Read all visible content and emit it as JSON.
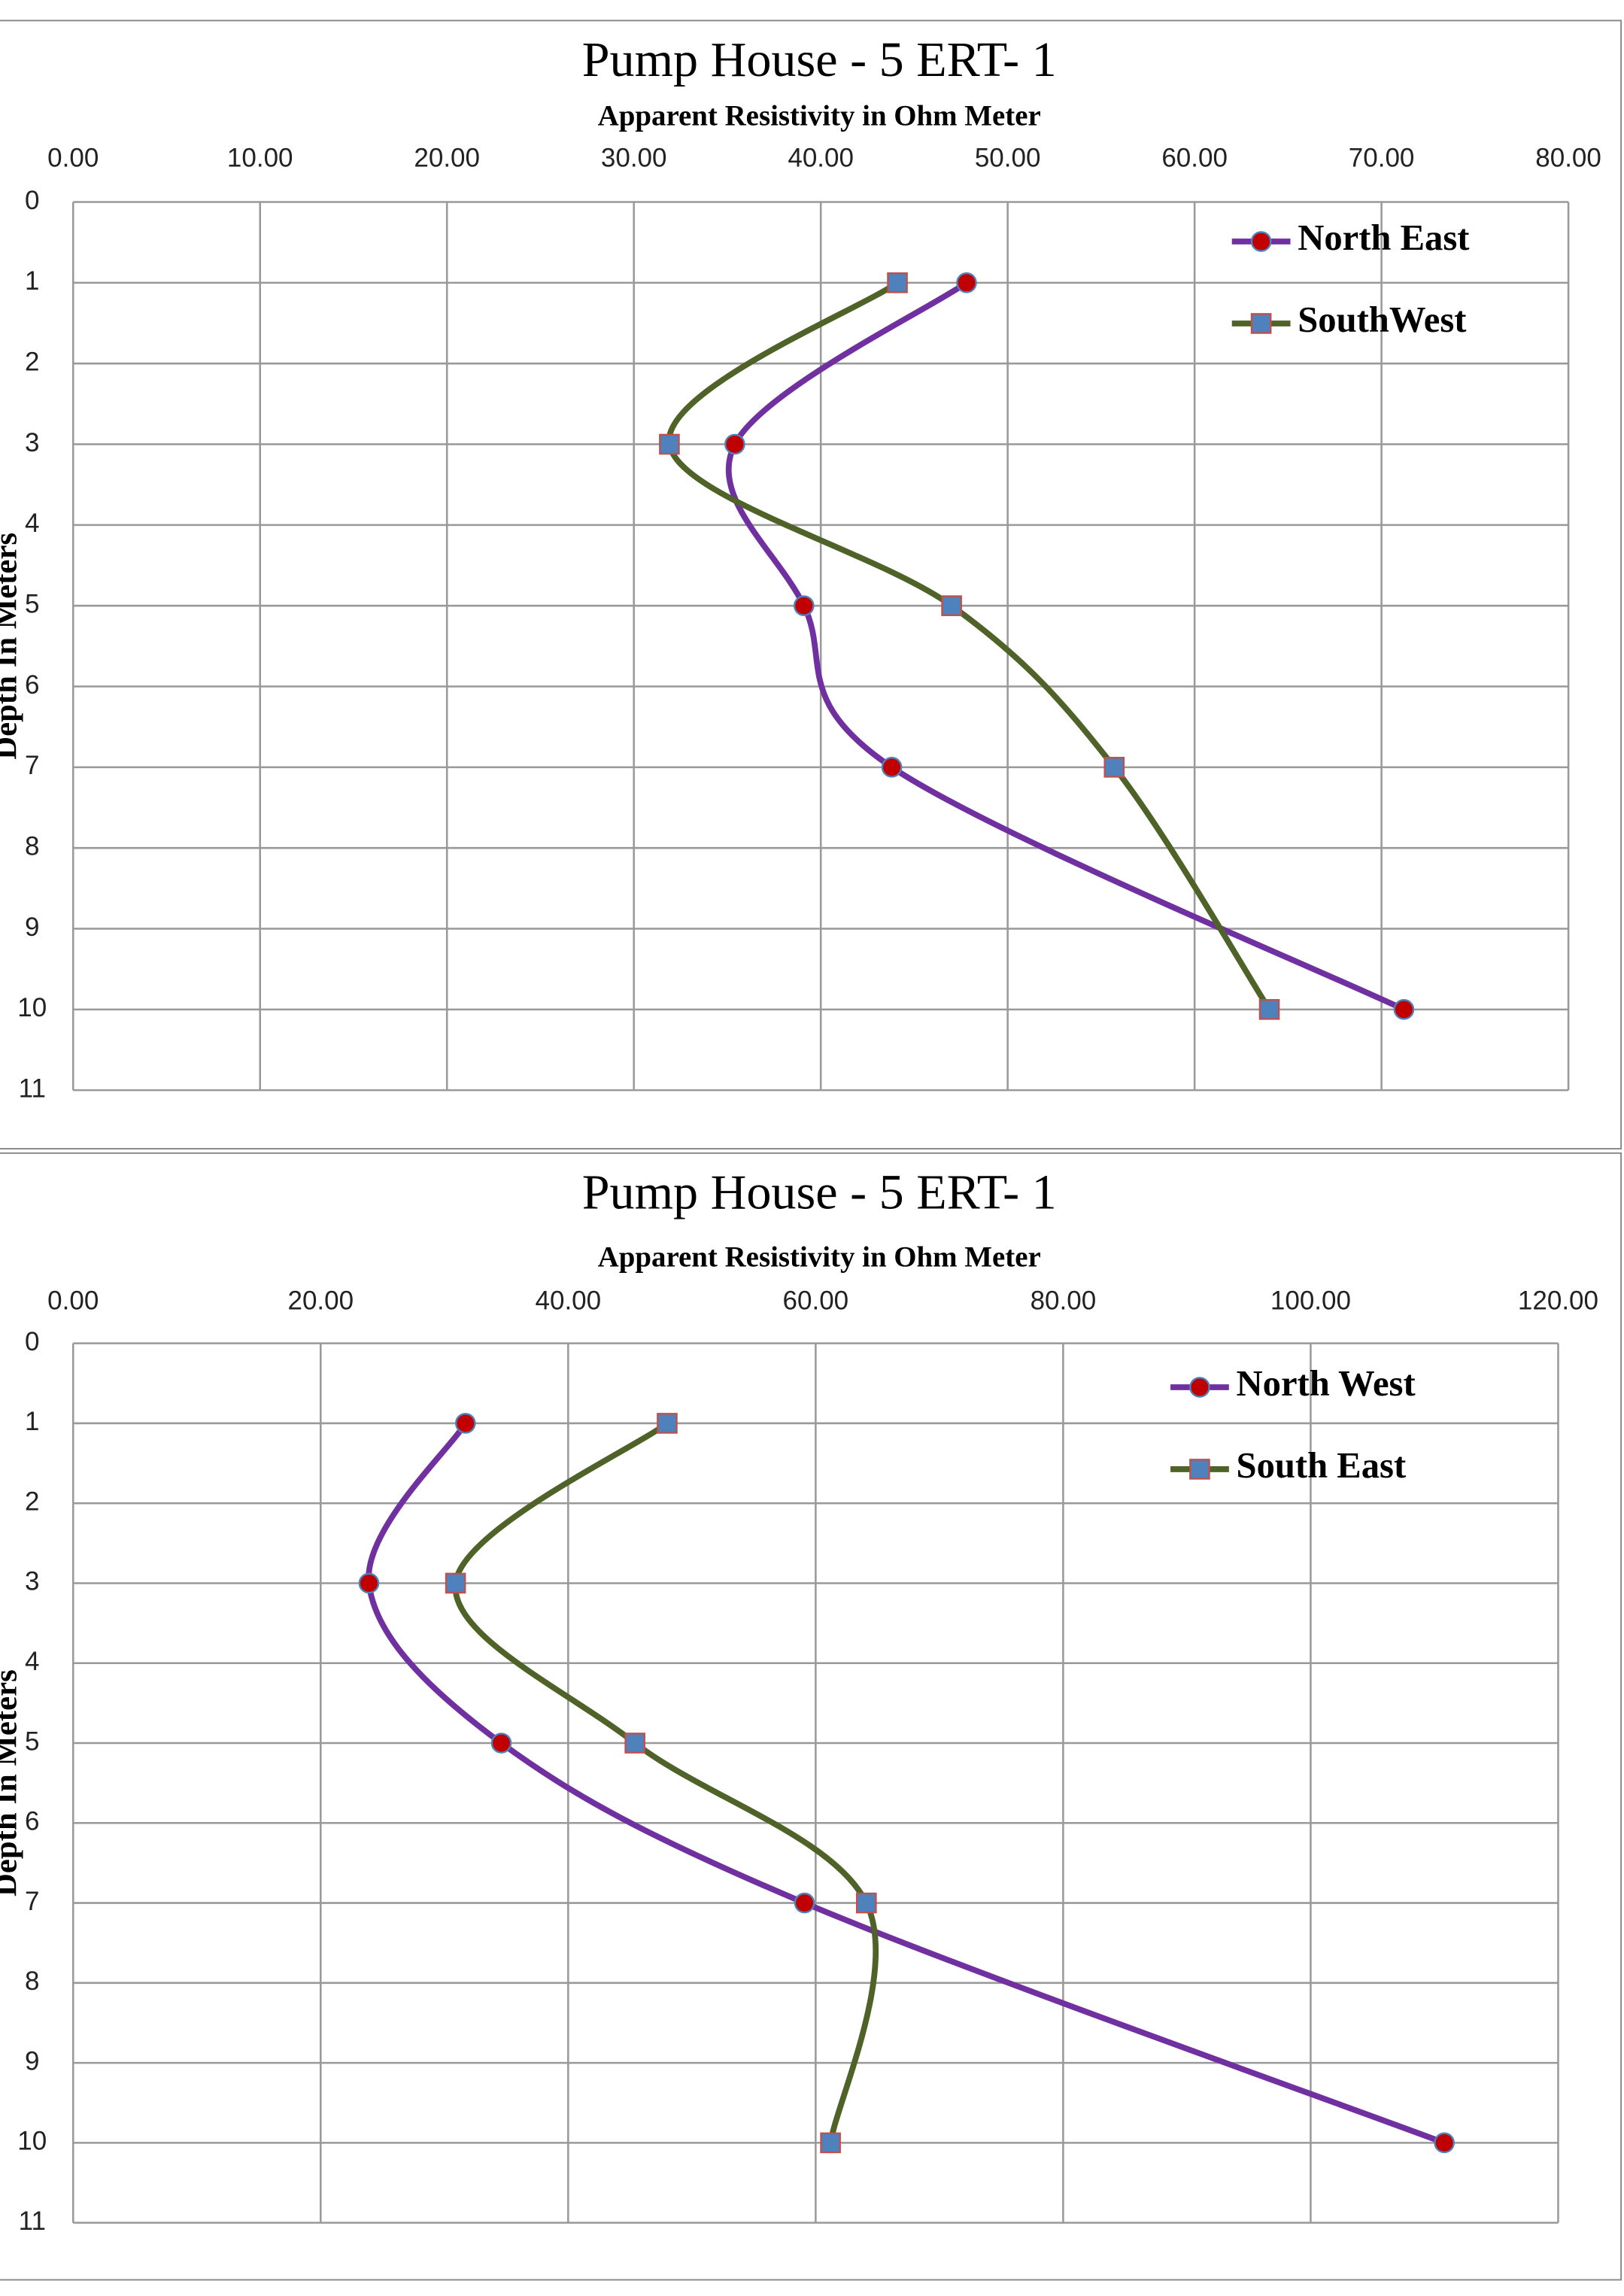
{
  "chart_data": [
    {
      "type": "line",
      "title": "Pump House - 5   ERT- 1",
      "x_label": "Apparent Resistivity in Ohm Meter",
      "y_label": "Depth In Meters",
      "depths": [
        1,
        3,
        5,
        7,
        10
      ],
      "series": [
        {
          "name": "North East",
          "color": "#7030a0",
          "marker": "circle",
          "values": [
            47.8,
            35.4,
            39.1,
            43.8,
            71.2
          ]
        },
        {
          "name": "SouthWest",
          "color": "#4f6228",
          "marker": "square",
          "values": [
            44.1,
            31.9,
            47.0,
            55.7,
            64.0
          ]
        }
      ],
      "xlim": [
        0,
        80
      ],
      "xticks": [
        {
          "value": 0,
          "label": "0.00"
        },
        {
          "value": 10,
          "label": "10.00"
        },
        {
          "value": 20,
          "label": "20.00"
        },
        {
          "value": 30,
          "label": "30.00"
        },
        {
          "value": 40,
          "label": "40.00"
        },
        {
          "value": 50,
          "label": "50.00"
        },
        {
          "value": 60,
          "label": "60.00"
        },
        {
          "value": 70,
          "label": "70.00"
        },
        {
          "value": 80,
          "label": "80.00"
        }
      ],
      "ylim": [
        0,
        11
      ],
      "yticks": [
        0,
        1,
        2,
        3,
        4,
        5,
        6,
        7,
        8,
        9,
        10,
        11
      ],
      "grid": true
    },
    {
      "type": "line",
      "title": "Pump House - 5  ERT- 1",
      "x_label": "Apparent Resistivity in Ohm Meter",
      "y_label": "Depth In Meters",
      "depths": [
        1,
        3,
        5,
        7,
        10
      ],
      "series": [
        {
          "name": "North West",
          "color": "#7030a0",
          "marker": "circle",
          "values": [
            31.7,
            23.9,
            34.6,
            59.1,
            110.8
          ]
        },
        {
          "name": "South East",
          "color": "#4f6228",
          "marker": "square",
          "values": [
            48.0,
            30.9,
            45.4,
            64.1,
            61.2
          ]
        }
      ],
      "xlim": [
        0,
        120
      ],
      "xticks": [
        {
          "value": 0,
          "label": "0.00"
        },
        {
          "value": 20,
          "label": "20.00"
        },
        {
          "value": 40,
          "label": "40.00"
        },
        {
          "value": 60,
          "label": "60.00"
        },
        {
          "value": 80,
          "label": "80.00"
        },
        {
          "value": 100,
          "label": "100.00"
        },
        {
          "value": 120,
          "label": "120.00"
        }
      ],
      "ylim": [
        0,
        11
      ],
      "yticks": [
        0,
        1,
        2,
        3,
        4,
        5,
        6,
        7,
        8,
        9,
        10,
        11
      ],
      "grid": true
    }
  ]
}
